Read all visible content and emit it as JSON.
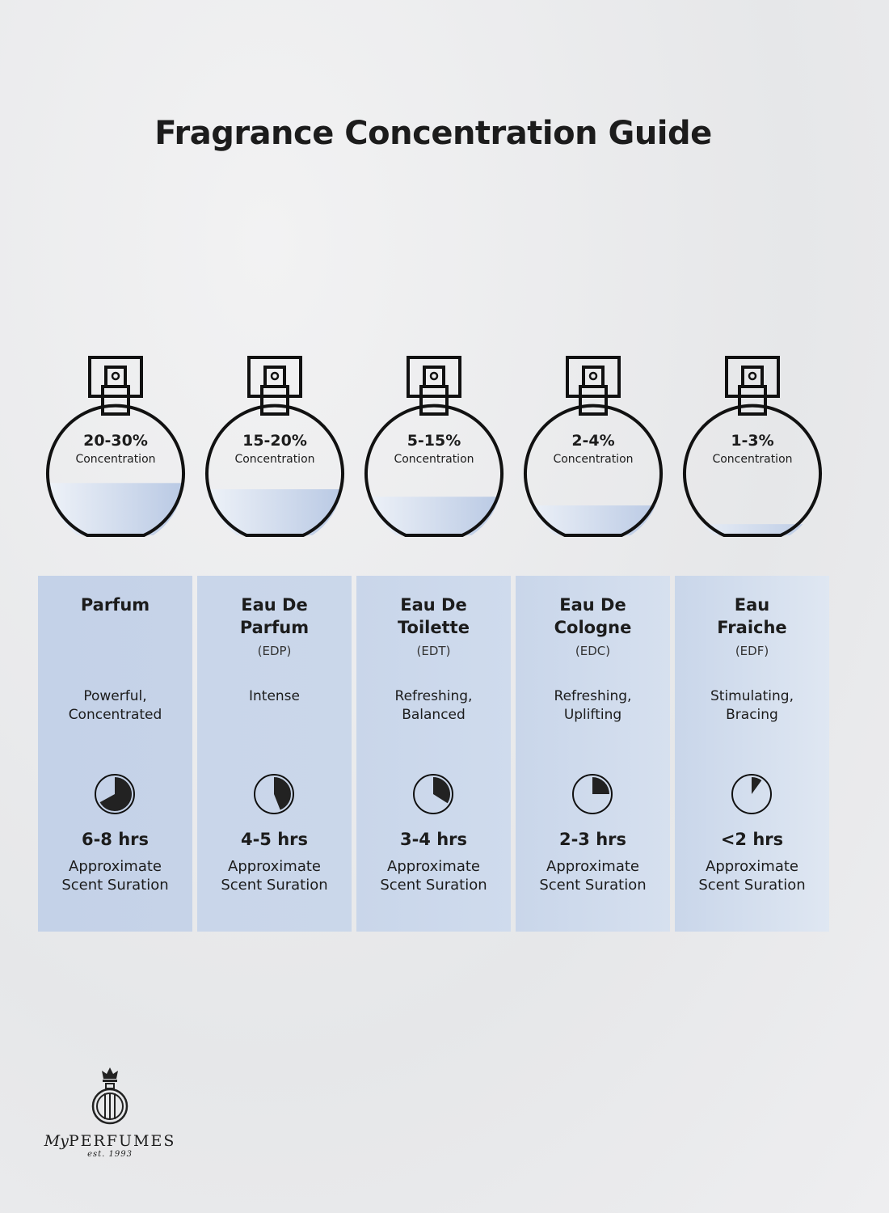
{
  "title": "Fragrance Concentration Guide",
  "colors": {
    "fill": "#b9c9e4",
    "column_dark": "#c4d2e8",
    "column_light": "#dfe7f2",
    "ink": "#1c1c1c"
  },
  "types": [
    {
      "concentration": "20-30%",
      "concentration_label": "Concentration",
      "fill_level": 0.42,
      "name": "Parfum",
      "abbr": "",
      "description": "Powerful, Concentrated",
      "duration_fraction": 0.67,
      "duration": "6-8 hrs",
      "duration_label": "Approximate Scent Suration"
    },
    {
      "concentration": "15-20%",
      "concentration_label": "Concentration",
      "fill_level": 0.37,
      "name": "Eau De Parfum",
      "abbr": "(EDP)",
      "description": "Intense",
      "duration_fraction": 0.44,
      "duration": "4-5 hrs",
      "duration_label": "Approximate Scent Suration"
    },
    {
      "concentration": "5-15%",
      "concentration_label": "Concentration",
      "fill_level": 0.31,
      "name": "Eau De Toilette",
      "abbr": "(EDT)",
      "description": "Refreshing, Balanced",
      "duration_fraction": 0.34,
      "duration": "3-4 hrs",
      "duration_label": "Approximate Scent Suration"
    },
    {
      "concentration": "2-4%",
      "concentration_label": "Concentration",
      "fill_level": 0.24,
      "name": "Eau De Cologne",
      "abbr": "(EDC)",
      "description": "Refreshing, Uplifting",
      "duration_fraction": 0.25,
      "duration": "2-3 hrs",
      "duration_label": "Approximate Scent Suration"
    },
    {
      "concentration": "1-3%",
      "concentration_label": "Concentration",
      "fill_level": 0.09,
      "name": "Eau Fraiche",
      "abbr": "(EDF)",
      "description": "Stimulating, Bracing",
      "duration_fraction": 0.1,
      "duration": "<2 hrs",
      "duration_label": "Approximate Scent Suration"
    }
  ],
  "logo": {
    "brand_prefix": "My",
    "brand": "PERFUMES",
    "est": "est. 1993"
  }
}
